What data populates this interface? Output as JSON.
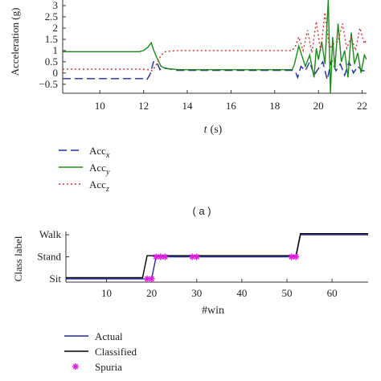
{
  "chart_data": [
    {
      "type": "line",
      "xlabel_italic": "t",
      "xlabel_unit": "(s)",
      "ylabel": "Acceleration (g)",
      "xlim": [
        8.3,
        22.2
      ],
      "ylim": [
        -0.9,
        3.25
      ],
      "x_ticks": [
        10,
        12,
        14,
        16,
        18,
        20,
        22
      ],
      "y_ticks": [
        -0.5,
        0,
        0.5,
        1,
        1.5,
        2,
        2.5,
        3
      ],
      "y_tick_labels": [
        "−0.5",
        "0",
        "0.5",
        "1",
        "1.5",
        "2",
        "2.5",
        "3"
      ],
      "panel_label": "( a )",
      "legend_position": "below",
      "series": [
        {
          "name": "Acc",
          "subscript": "x",
          "color": "#1f2fa0",
          "style": "dashed",
          "x": [
            8.3,
            12.0,
            12.15,
            12.3,
            12.45,
            12.6,
            12.75,
            12.9,
            13.1,
            13.5,
            14.0,
            15.0,
            16.0,
            17.0,
            18.0,
            18.8,
            18.95,
            19.05,
            19.2,
            19.4,
            19.6,
            19.8,
            20.0,
            20.2,
            20.4,
            20.6,
            20.8,
            21.0,
            21.2,
            21.4,
            21.6,
            21.8,
            22.0,
            22.2
          ],
          "y": [
            -0.25,
            -0.25,
            -0.3,
            -0.05,
            0.5,
            0.5,
            0.15,
            0.25,
            0.2,
            0.12,
            0.12,
            0.12,
            0.12,
            0.12,
            0.12,
            0.12,
            0.05,
            -0.2,
            0.3,
            0.1,
            0.5,
            -0.1,
            0.2,
            0.5,
            -0.3,
            0.6,
            0.1,
            0.4,
            -0.1,
            0.5,
            0.0,
            0.3,
            0.1,
            0.1
          ]
        },
        {
          "name": "Acc",
          "subscript": "y",
          "color": "#1a8a1a",
          "style": "solid",
          "x": [
            8.3,
            11.8,
            12.0,
            12.2,
            12.35,
            12.45,
            12.6,
            12.8,
            13.0,
            13.3,
            13.6,
            14.0,
            15.0,
            16.0,
            17.0,
            18.0,
            18.8,
            18.9,
            19.0,
            19.1,
            19.2,
            19.4,
            19.6,
            19.8,
            19.9,
            20.0,
            20.15,
            20.3,
            20.45,
            20.55,
            20.65,
            20.75,
            20.9,
            21.05,
            21.2,
            21.35,
            21.5,
            21.65,
            21.8,
            21.95,
            22.1,
            22.2
          ],
          "y": [
            0.95,
            0.95,
            1.0,
            1.15,
            1.35,
            1.05,
            0.7,
            0.3,
            0.2,
            0.18,
            0.15,
            0.15,
            0.15,
            0.15,
            0.15,
            0.15,
            0.15,
            0.4,
            0.8,
            1.2,
            0.9,
            0.3,
            0.8,
            -0.2,
            1.1,
            0.6,
            1.4,
            0.4,
            3.25,
            -0.9,
            1.6,
            0.2,
            2.2,
            0.5,
            1.0,
            -0.2,
            1.8,
            0.4,
            0.9,
            0.0,
            0.8,
            0.6
          ]
        },
        {
          "name": "Acc",
          "subscript": "z",
          "color": "#d03030",
          "style": "dotted",
          "x": [
            8.3,
            12.0,
            12.2,
            12.4,
            12.6,
            12.8,
            13.0,
            13.5,
            14.0,
            15.0,
            16.0,
            17.0,
            18.0,
            18.8,
            18.95,
            19.1,
            19.3,
            19.5,
            19.7,
            19.9,
            20.1,
            20.3,
            20.5,
            20.7,
            20.9,
            21.1,
            21.3,
            21.5,
            21.7,
            21.9,
            22.1,
            22.2
          ],
          "y": [
            0.17,
            0.17,
            0.15,
            0.1,
            0.4,
            0.8,
            0.95,
            1.0,
            1.0,
            1.0,
            1.0,
            1.0,
            1.0,
            1.0,
            1.2,
            1.6,
            1.0,
            1.9,
            0.9,
            2.3,
            1.0,
            2.7,
            1.1,
            1.3,
            1.4,
            2.2,
            1.1,
            1.6,
            1.0,
            2.0,
            1.3,
            1.5
          ]
        }
      ]
    },
    {
      "type": "line",
      "xlabel": "#win",
      "ylabel": "Class label",
      "xlim": [
        1,
        68
      ],
      "ylim": [
        0.85,
        3.15
      ],
      "x_ticks": [
        10,
        20,
        30,
        40,
        50,
        60
      ],
      "y_ticks": [
        1,
        2,
        3
      ],
      "y_tick_labels": [
        "Sit",
        "Stand",
        "Walk"
      ],
      "legend_position": "below",
      "series": [
        {
          "name": "Actual",
          "color": "#1f2fa0",
          "x": [
            1,
            19,
            20,
            21,
            52,
            53,
            68
          ],
          "y": [
            1,
            1,
            1,
            2,
            2,
            3,
            3
          ]
        },
        {
          "name": "Classified",
          "color": "#000000",
          "x": [
            1,
            18,
            19,
            52,
            53,
            68
          ],
          "y": [
            1.05,
            1.05,
            2.05,
            2.05,
            3.05,
            3.05
          ]
        },
        {
          "name": "Spuria",
          "color": "#e020e0",
          "type": "scatter",
          "x": [
            19,
            20,
            21,
            22,
            23,
            29,
            30,
            51,
            52
          ],
          "y": [
            1,
            1,
            2,
            2,
            2,
            2,
            2,
            2,
            2
          ]
        }
      ]
    }
  ]
}
